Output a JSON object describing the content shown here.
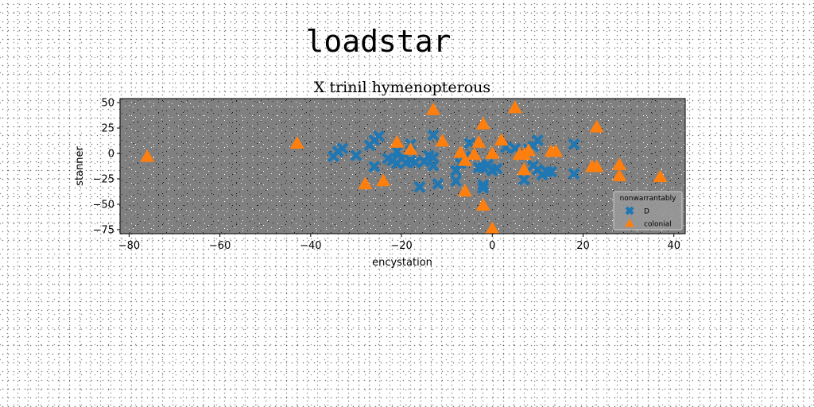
{
  "figure": {
    "suptitle": "loadstar"
  },
  "chart_data": {
    "type": "scatter",
    "title": "X trinil hymenopterous",
    "xlabel": "encystation",
    "ylabel": "stanner",
    "xlim": [
      -82,
      42.5
    ],
    "ylim": [
      -79,
      54
    ],
    "xticks": [
      "−80",
      "−60",
      "−40",
      "−20",
      "0",
      "20",
      "40"
    ],
    "xtick_values": [
      -80,
      -60,
      -40,
      -20,
      0,
      20,
      40
    ],
    "yticks": [
      "−75",
      "−50",
      "−25",
      "0",
      "25",
      "50"
    ],
    "ytick_values": [
      -75,
      -50,
      -25,
      0,
      25,
      50
    ],
    "grid": false,
    "background_color": "#808080",
    "legend": {
      "title": "nonwarrantably",
      "placement": "lower-right"
    },
    "series": [
      {
        "name": "D",
        "marker": "X",
        "color": "#1f77b4",
        "points": [
          [
            -35,
            -3
          ],
          [
            -34,
            2
          ],
          [
            -33,
            5
          ],
          [
            -30,
            -2
          ],
          [
            -27,
            8
          ],
          [
            -26,
            -13
          ],
          [
            -26,
            13
          ],
          [
            -25,
            17
          ],
          [
            -23,
            -5
          ],
          [
            -22,
            -7
          ],
          [
            -21,
            2
          ],
          [
            -21,
            -10
          ],
          [
            -20,
            -5
          ],
          [
            -19,
            -9
          ],
          [
            -18,
            -7
          ],
          [
            -18,
            9
          ],
          [
            -17,
            -9
          ],
          [
            -16,
            -33
          ],
          [
            -15,
            -8
          ],
          [
            -14,
            -2
          ],
          [
            -13,
            -4
          ],
          [
            -13,
            -12
          ],
          [
            -13,
            18
          ],
          [
            -12,
            -30
          ],
          [
            -8,
            -17
          ],
          [
            -8,
            -27
          ],
          [
            -7,
            -10
          ],
          [
            -6,
            -3
          ],
          [
            -5,
            10
          ],
          [
            -3,
            -14
          ],
          [
            -2,
            -14
          ],
          [
            -2,
            -31
          ],
          [
            -2,
            -34
          ],
          [
            -1,
            -11
          ],
          [
            0,
            -17
          ],
          [
            1,
            -15
          ],
          [
            3,
            6
          ],
          [
            5,
            5
          ],
          [
            7,
            -26
          ],
          [
            8,
            4
          ],
          [
            9,
            -12
          ],
          [
            9,
            7
          ],
          [
            10,
            -16
          ],
          [
            10,
            13
          ],
          [
            11,
            -21
          ],
          [
            12,
            -18
          ],
          [
            13,
            -18
          ],
          [
            18,
            -20
          ],
          [
            18,
            9
          ]
        ]
      },
      {
        "name": "colonial",
        "marker": "^",
        "color": "#ff7f0e",
        "points": [
          [
            -76,
            -3
          ],
          [
            -43,
            10
          ],
          [
            -28,
            -30
          ],
          [
            -24,
            -27
          ],
          [
            -21,
            11
          ],
          [
            -18,
            4
          ],
          [
            -11,
            12
          ],
          [
            -13,
            43
          ],
          [
            -7,
            1
          ],
          [
            -6,
            -37
          ],
          [
            -6,
            -7
          ],
          [
            -4,
            -1
          ],
          [
            -3,
            11
          ],
          [
            -2,
            29
          ],
          [
            -2,
            -51
          ],
          [
            0,
            0
          ],
          [
            0,
            -74
          ],
          [
            2,
            13
          ],
          [
            5,
            45
          ],
          [
            6,
            -1
          ],
          [
            7,
            -1
          ],
          [
            7,
            -16
          ],
          [
            8,
            3
          ],
          [
            13,
            2
          ],
          [
            14,
            2
          ],
          [
            22,
            -13
          ],
          [
            23,
            -13
          ],
          [
            23,
            26
          ],
          [
            28,
            -11
          ],
          [
            28,
            -22
          ],
          [
            37,
            -23
          ]
        ]
      }
    ]
  }
}
